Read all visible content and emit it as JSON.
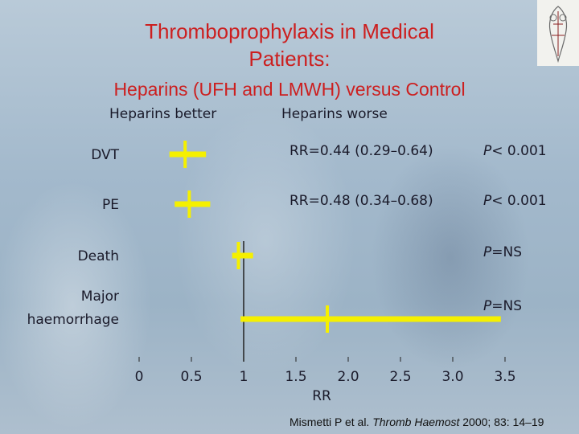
{
  "title_line1": "Thromboprophylaxis in Medical",
  "title_line2": "Patients:",
  "subtitle": "Heparins (UFH and LMWH) versus Control",
  "header_better": "Heparins better",
  "header_worse": "Heparins worse",
  "citation_author": "Mismetti P et al.",
  "citation_journal": "Thromb Haemost",
  "citation_detail": "2000; 83: 14–19",
  "colors": {
    "title": "#cc1f1f",
    "marker": "#f5f000",
    "text": "#1a1a2a"
  },
  "chart_data": {
    "type": "forest",
    "xlabel": "RR",
    "xlim": [
      0,
      3.5
    ],
    "ticks": [
      0,
      0.5,
      1,
      1.5,
      2.0,
      2.5,
      3.0,
      3.5
    ],
    "tick_labels": [
      "0",
      "0.5",
      "1",
      "1.5",
      "2.0",
      "2.5",
      "3.0",
      "3.5"
    ],
    "reference_line": 1,
    "rows": [
      {
        "label": [
          "DVT"
        ],
        "rr": 0.44,
        "ci": [
          0.29,
          0.64
        ],
        "rr_text": "RR=0.44  (0.29–0.64)",
        "p_italic": "P",
        "p_rest": "< 0.001"
      },
      {
        "label": [
          "PE"
        ],
        "rr": 0.48,
        "ci": [
          0.34,
          0.68
        ],
        "rr_text": "RR=0.48  (0.34–0.68)",
        "p_italic": "P",
        "p_rest": "< 0.001"
      },
      {
        "label": [
          "Death"
        ],
        "rr": 0.95,
        "ci": [
          0.89,
          1.09
        ],
        "rr_text": "",
        "p_italic": "P",
        "p_rest": "=NS"
      },
      {
        "label": [
          "Major",
          "haemorrhage"
        ],
        "rr": 1.8,
        "ci": [
          0.97,
          3.46
        ],
        "rr_text": "",
        "p_italic": "P",
        "p_rest": "=NS"
      }
    ]
  }
}
